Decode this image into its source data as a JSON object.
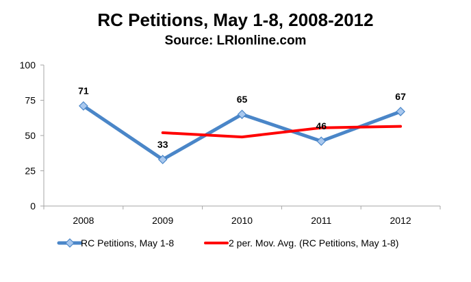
{
  "chart_data": {
    "type": "line",
    "title": "RC Petitions, May 1-8, 2008-2012",
    "subtitle": "Source: LRIonline.com",
    "xlabel": "",
    "ylabel": "",
    "categories": [
      "2008",
      "2009",
      "2010",
      "2011",
      "2012"
    ],
    "ylim": [
      0,
      100
    ],
    "yticks": [
      0,
      25,
      50,
      75,
      100
    ],
    "grid": false,
    "legend_position": "bottom",
    "series": [
      {
        "name": "RC Petitions, May 1-8",
        "values": [
          71,
          33,
          65,
          46,
          67
        ],
        "data_labels": [
          "71",
          "33",
          "65",
          "46",
          "67"
        ],
        "color": "#4a86c8",
        "marker": "diamond",
        "marker_fill": "#a9c8ee"
      },
      {
        "name": "2 per. Mov. Avg. (RC Petitions, May 1-8)",
        "values": [
          null,
          52,
          49,
          55.5,
          56.5
        ],
        "color": "#ff0000",
        "marker": "none"
      }
    ]
  }
}
